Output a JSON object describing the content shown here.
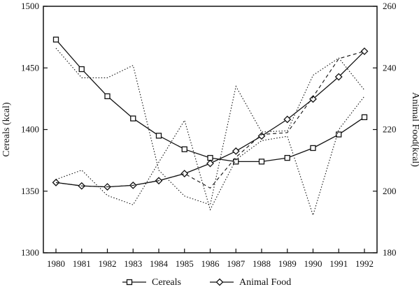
{
  "chart_data": {
    "type": "line",
    "x": [
      "1980",
      "1981",
      "1982",
      "1983",
      "1984",
      "1985",
      "1986",
      "1987",
      "1988",
      "1989",
      "1990",
      "1991",
      "1992"
    ],
    "left_axis": {
      "label": "Cereals (kcal)",
      "ylim": [
        1300,
        1500
      ],
      "ticks": [
        1300,
        1350,
        1400,
        1450,
        1500
      ]
    },
    "right_axis": {
      "label": "Animal Food(kcal)",
      "ylim": [
        180,
        260
      ],
      "ticks": [
        180,
        200,
        220,
        240,
        260
      ]
    },
    "series": [
      {
        "name": "Cereals",
        "axis": "left",
        "marker": "square",
        "style": "solid",
        "values": [
          1473,
          1449,
          1427,
          1409,
          1395,
          1384,
          1377,
          1374,
          1374,
          1377,
          1385,
          1396,
          1410
        ]
      },
      {
        "name": "Animal Food",
        "axis": "right",
        "marker": "diamond",
        "style": "solid",
        "values": [
          202.8,
          201.7,
          201.4,
          201.9,
          203.4,
          205.7,
          209,
          213,
          217.9,
          223.3,
          229.9,
          237.1,
          245.4
        ]
      },
      {
        "axis": "left",
        "marker": "none",
        "style": "dotted",
        "values": [
          1466,
          1442,
          1442,
          1452,
          1367,
          1346,
          1339,
          1435,
          1398,
          1399,
          1444,
          1458,
          1432
        ]
      },
      {
        "axis": "right",
        "marker": "none",
        "style": "dotted",
        "values": [
          203.8,
          206.8,
          198.6,
          195.6,
          209.4,
          223,
          194,
          210.2,
          216.4,
          217.8,
          192.2,
          220,
          230.8
        ]
      },
      {
        "axis": "right",
        "marker": "none",
        "style": "dashed",
        "values": [
          202.8,
          201.7,
          201.4,
          201.9,
          203.4,
          205.7,
          201,
          211,
          218.4,
          219,
          230.6,
          243,
          245.4
        ]
      }
    ],
    "grid": false,
    "legend": "bottom"
  },
  "colors": {
    "line": "#111111",
    "background": "#ffffff"
  }
}
